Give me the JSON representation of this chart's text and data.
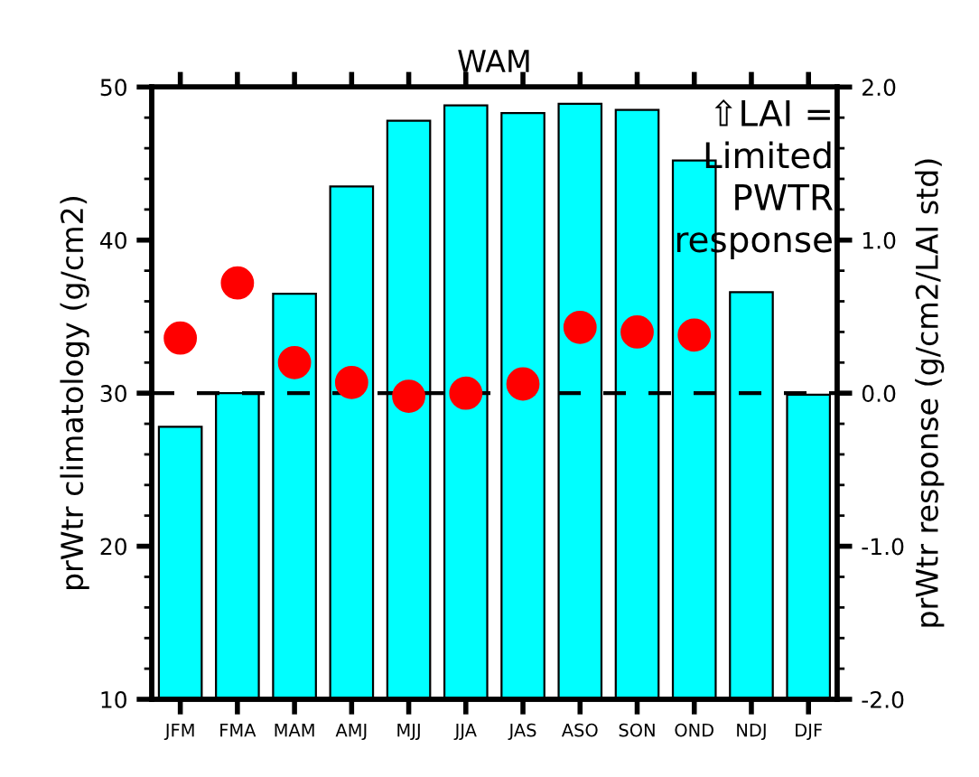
{
  "chart_data": {
    "type": "bar",
    "title": "WAM",
    "categories": [
      "JFM",
      "FMA",
      "MAM",
      "AMJ",
      "MJJ",
      "JJA",
      "JAS",
      "ASO",
      "SON",
      "OND",
      "NDJ",
      "DJF"
    ],
    "ylabel": "prWtr climatology (g/cm2)",
    "y2label": "prWtr response (g/cm2/LAI std)",
    "ylim": [
      10,
      50
    ],
    "yticks": [
      10,
      20,
      30,
      40,
      50
    ],
    "y2lim": [
      -2.0,
      2.0
    ],
    "y2ticks": [
      {
        "value": -2.0,
        "label": "-2.0"
      },
      {
        "value": -1.0,
        "label": "-1.0"
      },
      {
        "value": 0.0,
        "label": "0.0"
      },
      {
        "value": 1.0,
        "label": "1.0"
      },
      {
        "value": 2.0,
        "label": "2.0"
      }
    ],
    "series": [
      {
        "color": "#00ffff",
        "values": [
          27.8,
          30.0,
          36.5,
          43.5,
          47.8,
          48.8,
          48.3,
          48.9,
          48.5,
          45.2,
          36.6,
          29.9
        ]
      },
      {
        "type": "scatter",
        "axis": "y2",
        "color": "#ff0000",
        "marker": "circle",
        "values": [
          0.36,
          0.72,
          0.2,
          0.07,
          -0.02,
          0.0,
          0.06,
          0.43,
          0.4,
          0.38,
          null,
          null
        ]
      }
    ],
    "ref_lines": [
      {
        "axis": "y2",
        "value": 0.0,
        "color": "#000000",
        "line_style": "dashed"
      }
    ],
    "annotations": [
      "⇧LAI =\nLimited\nPWTR\nresponse"
    ],
    "grid": false,
    "legend": false
  }
}
